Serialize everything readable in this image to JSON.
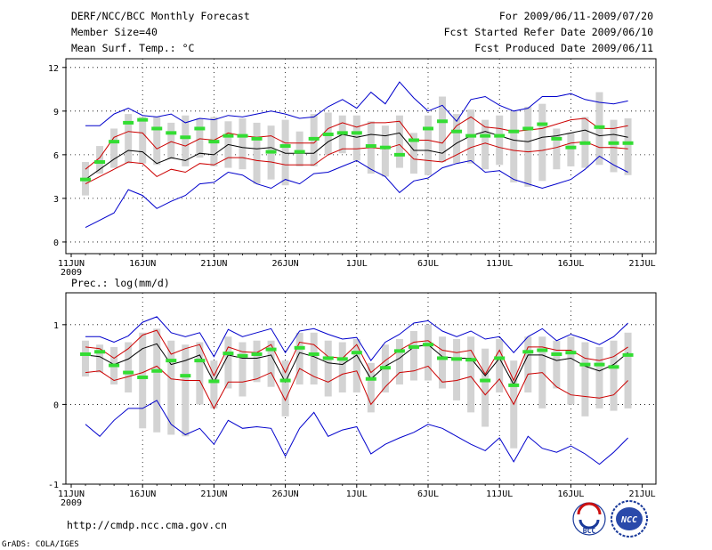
{
  "header": {
    "title": "DERF/NCC/BCC Monthly Forecast",
    "member_size": "Member Size=40",
    "variable": "Mean Surf. Temp.: °C",
    "period": "For 2009/06/11-2009/07/20",
    "started": "Fcst Started Refer Date 2009/06/10",
    "produced": "Fcst Produced Date 2009/06/11"
  },
  "footer": {
    "url": "http://cmdp.ncc.cma.gov.cn",
    "credit": "GrADS: COLA/IGES",
    "logo_bcc": "BCC",
    "logo_ncc": "NCC"
  },
  "colors": {
    "max_min": "#0000cc",
    "spread": "#cc0000",
    "mean": "#000000",
    "box": "#d3d3d3",
    "obs": "#33dd33"
  },
  "chart_data": [
    {
      "type": "line",
      "title": "Mean Surf. Temp.: °C",
      "year_label": "2009",
      "xlabels": [
        "11JUN",
        "16JUN",
        "21JUN",
        "26JUN",
        "1JUL",
        "6JUL",
        "11JUL",
        "16JUL",
        "21JUL"
      ],
      "xlabel_days": [
        0,
        5,
        10,
        15,
        20,
        25,
        30,
        35,
        40
      ],
      "yticks": [
        0,
        3,
        6,
        9,
        12
      ],
      "ylim": [
        -0.8,
        12.6
      ],
      "x": [
        1,
        2,
        3,
        4,
        5,
        6,
        7,
        8,
        9,
        10,
        11,
        12,
        13,
        14,
        15,
        16,
        17,
        18,
        19,
        20,
        21,
        22,
        23,
        24,
        25,
        26,
        27,
        28,
        29,
        30,
        31,
        32,
        33,
        34,
        35,
        36,
        37,
        38,
        39
      ],
      "series": [
        {
          "name": "max",
          "values": [
            8.0,
            8.0,
            8.8,
            9.2,
            8.7,
            8.6,
            8.8,
            8.2,
            8.5,
            8.4,
            8.7,
            8.6,
            8.8,
            9.0,
            8.8,
            8.5,
            8.6,
            9.3,
            9.8,
            9.2,
            10.3,
            9.5,
            11.0,
            9.9,
            9.0,
            9.4,
            8.3,
            9.8,
            10.0,
            9.4,
            9.0,
            9.2,
            10.0,
            10.0,
            10.2,
            9.8,
            9.6,
            9.5,
            9.7
          ]
        },
        {
          "name": "upper",
          "values": [
            5.0,
            5.8,
            7.2,
            7.6,
            7.5,
            6.4,
            6.9,
            6.6,
            7.1,
            7.0,
            7.5,
            7.3,
            7.2,
            7.3,
            6.8,
            6.8,
            6.8,
            7.8,
            8.2,
            7.9,
            8.2,
            8.2,
            8.3,
            7.0,
            7.0,
            6.8,
            8.0,
            8.6,
            7.9,
            7.8,
            7.6,
            7.7,
            7.8,
            8.1,
            8.4,
            8.5,
            7.8,
            7.8,
            8.0
          ]
        },
        {
          "name": "mean",
          "values": [
            4.3,
            5.0,
            5.7,
            6.3,
            6.2,
            5.4,
            5.8,
            5.6,
            6.1,
            6.0,
            6.7,
            6.5,
            6.4,
            6.5,
            6.1,
            6.1,
            6.1,
            6.9,
            7.4,
            7.2,
            7.4,
            7.3,
            7.5,
            6.3,
            6.3,
            6.1,
            6.8,
            7.3,
            7.6,
            7.3,
            7.0,
            6.9,
            7.2,
            7.3,
            7.5,
            7.7,
            7.3,
            7.4,
            7.2
          ]
        },
        {
          "name": "lower",
          "values": [
            4.0,
            4.5,
            5.0,
            5.5,
            5.4,
            4.5,
            5.0,
            4.8,
            5.4,
            5.3,
            5.8,
            5.8,
            5.6,
            5.5,
            5.3,
            5.3,
            5.3,
            6.0,
            6.4,
            6.4,
            6.5,
            6.4,
            6.7,
            5.7,
            5.6,
            5.5,
            6.0,
            6.5,
            6.8,
            6.5,
            6.3,
            6.2,
            6.3,
            6.5,
            6.8,
            6.9,
            6.5,
            6.5,
            6.4
          ]
        },
        {
          "name": "min",
          "values": [
            1.0,
            1.5,
            2.0,
            3.6,
            3.2,
            2.3,
            2.8,
            3.2,
            4.0,
            4.1,
            4.8,
            4.6,
            4.0,
            3.7,
            4.3,
            4.0,
            4.7,
            4.8,
            5.2,
            5.6,
            5.0,
            4.5,
            3.4,
            4.2,
            4.4,
            5.1,
            5.4,
            5.6,
            4.8,
            4.9,
            4.3,
            4.0,
            3.7,
            4.0,
            4.3,
            5.0,
            5.9,
            5.3,
            4.8
          ]
        },
        {
          "name": "ensemble_box_top",
          "values": [
            5.5,
            6.6,
            7.8,
            8.8,
            8.6,
            8.6,
            8.2,
            8.7,
            8.5,
            8.6,
            8.3,
            8.5,
            8.2,
            8.0,
            8.4,
            7.6,
            8.8,
            8.9,
            8.7,
            8.7,
            8.3,
            8.0,
            8.7,
            7.5,
            8.7,
            10.0,
            8.8,
            9.1,
            8.4,
            8.7,
            9.0,
            9.3,
            9.5,
            7.8,
            7.5,
            8.6,
            10.3,
            8.4,
            8.5
          ]
        },
        {
          "name": "ensemble_box_bottom",
          "values": [
            3.2,
            4.7,
            5.1,
            5.4,
            5.4,
            5.3,
            5.7,
            5.2,
            5.8,
            5.2,
            5.1,
            5.0,
            4.0,
            4.3,
            3.9,
            5.2,
            5.2,
            6.0,
            6.1,
            5.6,
            4.7,
            4.5,
            5.1,
            4.7,
            4.6,
            5.5,
            5.4,
            5.4,
            5.0,
            5.3,
            4.1,
            3.8,
            4.2,
            5.0,
            5.2,
            5.1,
            5.3,
            4.8,
            4.6
          ]
        },
        {
          "name": "observed",
          "values": [
            4.3,
            5.5,
            6.9,
            8.2,
            8.4,
            7.8,
            7.5,
            7.2,
            7.8,
            6.9,
            7.3,
            7.3,
            7.1,
            6.2,
            6.6,
            6.2,
            7.1,
            7.4,
            7.5,
            7.5,
            6.6,
            6.5,
            6.0,
            7.0,
            7.8,
            8.3,
            7.6,
            7.3,
            7.3,
            7.3,
            7.6,
            7.8,
            8.1,
            7.1,
            6.5,
            6.8,
            7.9,
            6.8,
            6.8
          ]
        }
      ]
    },
    {
      "type": "line",
      "title": "Prec.: log(mm/d)",
      "year_label": "2009",
      "xlabels": [
        "11JUN",
        "16JUN",
        "21JUN",
        "26JUN",
        "1JUL",
        "6JUL",
        "11JUL",
        "16JUL",
        "21JUL"
      ],
      "xlabel_days": [
        0,
        5,
        10,
        15,
        20,
        25,
        30,
        35,
        40
      ],
      "yticks": [
        -1,
        0,
        1
      ],
      "ylim": [
        -1,
        1.4
      ],
      "x": [
        1,
        2,
        3,
        4,
        5,
        6,
        7,
        8,
        9,
        10,
        11,
        12,
        13,
        14,
        15,
        16,
        17,
        18,
        19,
        20,
        21,
        22,
        23,
        24,
        25,
        26,
        27,
        28,
        29,
        30,
        31,
        32,
        33,
        34,
        35,
        36,
        37,
        38,
        39
      ],
      "series": [
        {
          "name": "max",
          "values": [
            0.85,
            0.85,
            0.78,
            0.86,
            1.03,
            1.1,
            0.9,
            0.85,
            0.9,
            0.6,
            0.94,
            0.85,
            0.9,
            0.95,
            0.65,
            0.92,
            0.95,
            0.88,
            0.82,
            0.84,
            0.55,
            0.78,
            0.88,
            1.02,
            1.05,
            0.92,
            0.85,
            0.92,
            0.82,
            0.85,
            0.65,
            0.85,
            0.95,
            0.8,
            0.88,
            0.82,
            0.75,
            0.85,
            1.02
          ]
        },
        {
          "name": "upper",
          "values": [
            0.72,
            0.7,
            0.58,
            0.7,
            0.87,
            0.93,
            0.63,
            0.7,
            0.75,
            0.36,
            0.72,
            0.66,
            0.65,
            0.75,
            0.4,
            0.78,
            0.75,
            0.6,
            0.58,
            0.75,
            0.4,
            0.55,
            0.68,
            0.78,
            0.8,
            0.68,
            0.65,
            0.68,
            0.38,
            0.68,
            0.3,
            0.72,
            0.72,
            0.68,
            0.68,
            0.58,
            0.55,
            0.6,
            0.72
          ]
        },
        {
          "name": "mean",
          "values": [
            0.62,
            0.6,
            0.5,
            0.57,
            0.7,
            0.76,
            0.5,
            0.55,
            0.62,
            0.28,
            0.62,
            0.58,
            0.58,
            0.62,
            0.28,
            0.65,
            0.6,
            0.52,
            0.5,
            0.62,
            0.32,
            0.48,
            0.58,
            0.72,
            0.75,
            0.6,
            0.58,
            0.58,
            0.36,
            0.58,
            0.25,
            0.62,
            0.62,
            0.55,
            0.58,
            0.48,
            0.42,
            0.5,
            0.65
          ]
        },
        {
          "name": "lower",
          "values": [
            0.4,
            0.42,
            0.3,
            0.35,
            0.4,
            0.48,
            0.32,
            0.3,
            0.3,
            -0.05,
            0.28,
            0.28,
            0.32,
            0.4,
            0.05,
            0.45,
            0.35,
            0.28,
            0.38,
            0.42,
            0.0,
            0.22,
            0.4,
            0.42,
            0.48,
            0.28,
            0.3,
            0.35,
            0.12,
            0.32,
            0.0,
            0.38,
            0.4,
            0.22,
            0.12,
            0.1,
            0.08,
            0.12,
            0.3
          ]
        },
        {
          "name": "min",
          "values": [
            -0.25,
            -0.4,
            -0.2,
            -0.05,
            -0.05,
            0.05,
            -0.25,
            -0.38,
            -0.3,
            -0.5,
            -0.2,
            -0.3,
            -0.28,
            -0.3,
            -0.65,
            -0.3,
            -0.1,
            -0.4,
            -0.32,
            -0.28,
            -0.62,
            -0.5,
            -0.42,
            -0.35,
            -0.25,
            -0.3,
            -0.4,
            -0.5,
            -0.58,
            -0.42,
            -0.72,
            -0.4,
            -0.55,
            -0.6,
            -0.52,
            -0.62,
            -0.75,
            -0.6,
            -0.42
          ]
        },
        {
          "name": "ensemble_box_top",
          "values": [
            0.8,
            0.75,
            0.72,
            0.78,
            0.9,
            0.95,
            0.8,
            0.75,
            0.78,
            0.55,
            0.85,
            0.78,
            0.8,
            0.8,
            0.55,
            0.9,
            0.9,
            0.8,
            0.78,
            0.82,
            0.52,
            0.75,
            0.82,
            0.92,
            1.0,
            0.85,
            0.82,
            0.85,
            0.7,
            0.82,
            0.55,
            0.85,
            0.85,
            0.8,
            0.85,
            0.78,
            0.72,
            0.8,
            0.9
          ]
        },
        {
          "name": "ensemble_box_bottom",
          "values": [
            0.35,
            0.4,
            0.25,
            0.15,
            -0.3,
            -0.35,
            -0.38,
            -0.4,
            0.0,
            -0.05,
            0.2,
            0.1,
            0.28,
            0.22,
            -0.15,
            0.25,
            0.25,
            0.1,
            0.15,
            0.15,
            -0.1,
            0.15,
            0.25,
            0.3,
            0.3,
            0.2,
            0.05,
            -0.1,
            -0.28,
            0.15,
            -0.55,
            0.15,
            -0.05,
            0.2,
            0.0,
            -0.15,
            -0.05,
            -0.08,
            -0.05
          ]
        },
        {
          "name": "observed",
          "values": [
            0.63,
            0.66,
            0.49,
            0.4,
            0.34,
            0.42,
            0.55,
            0.36,
            0.55,
            0.29,
            0.64,
            0.61,
            0.63,
            0.69,
            0.3,
            0.71,
            0.63,
            0.58,
            0.57,
            0.65,
            0.32,
            0.46,
            0.67,
            0.72,
            0.75,
            0.58,
            0.57,
            0.56,
            0.3,
            0.58,
            0.24,
            0.66,
            0.68,
            0.63,
            0.65,
            0.5,
            0.5,
            0.47,
            0.62
          ]
        }
      ]
    }
  ]
}
